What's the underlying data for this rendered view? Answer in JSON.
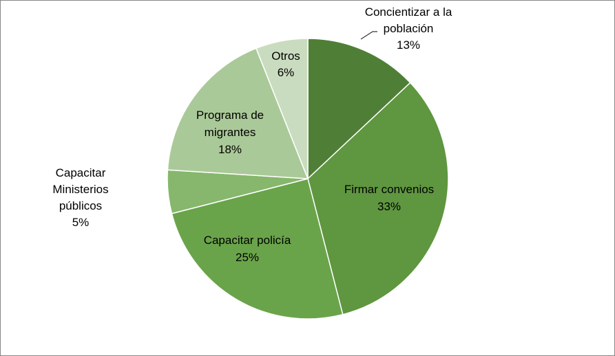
{
  "chart_data": {
    "type": "pie",
    "title": "",
    "slices": [
      {
        "label": "Concientizar a la población",
        "label_lines": [
          "Concientizar a la",
          "población"
        ],
        "value": 13,
        "value_label": "13%",
        "color": "#4f7f36"
      },
      {
        "label": "Firmar convenios",
        "label_lines": [
          "Firmar convenios"
        ],
        "value": 33,
        "value_label": "33%",
        "color": "#5f9640"
      },
      {
        "label": "Capacitar policía",
        "label_lines": [
          "Capacitar policía"
        ],
        "value": 25,
        "value_label": "25%",
        "color": "#6aa44a"
      },
      {
        "label": "Capacitar Ministerios públicos",
        "label_lines": [
          "Capacitar",
          "Ministerios",
          "públicos"
        ],
        "value": 5,
        "value_label": "5%",
        "color": "#86b76c"
      },
      {
        "label": "Programa de migrantes",
        "label_lines": [
          "Programa de",
          "migrantes"
        ],
        "value": 18,
        "value_label": "18%",
        "color": "#aac998"
      },
      {
        "label": "Otros",
        "label_lines": [
          "Otros"
        ],
        "value": 6,
        "value_label": "6%",
        "color": "#cadcbf"
      }
    ],
    "start_angle": "12 o'clock",
    "direction": "clockwise",
    "legend": "none"
  }
}
